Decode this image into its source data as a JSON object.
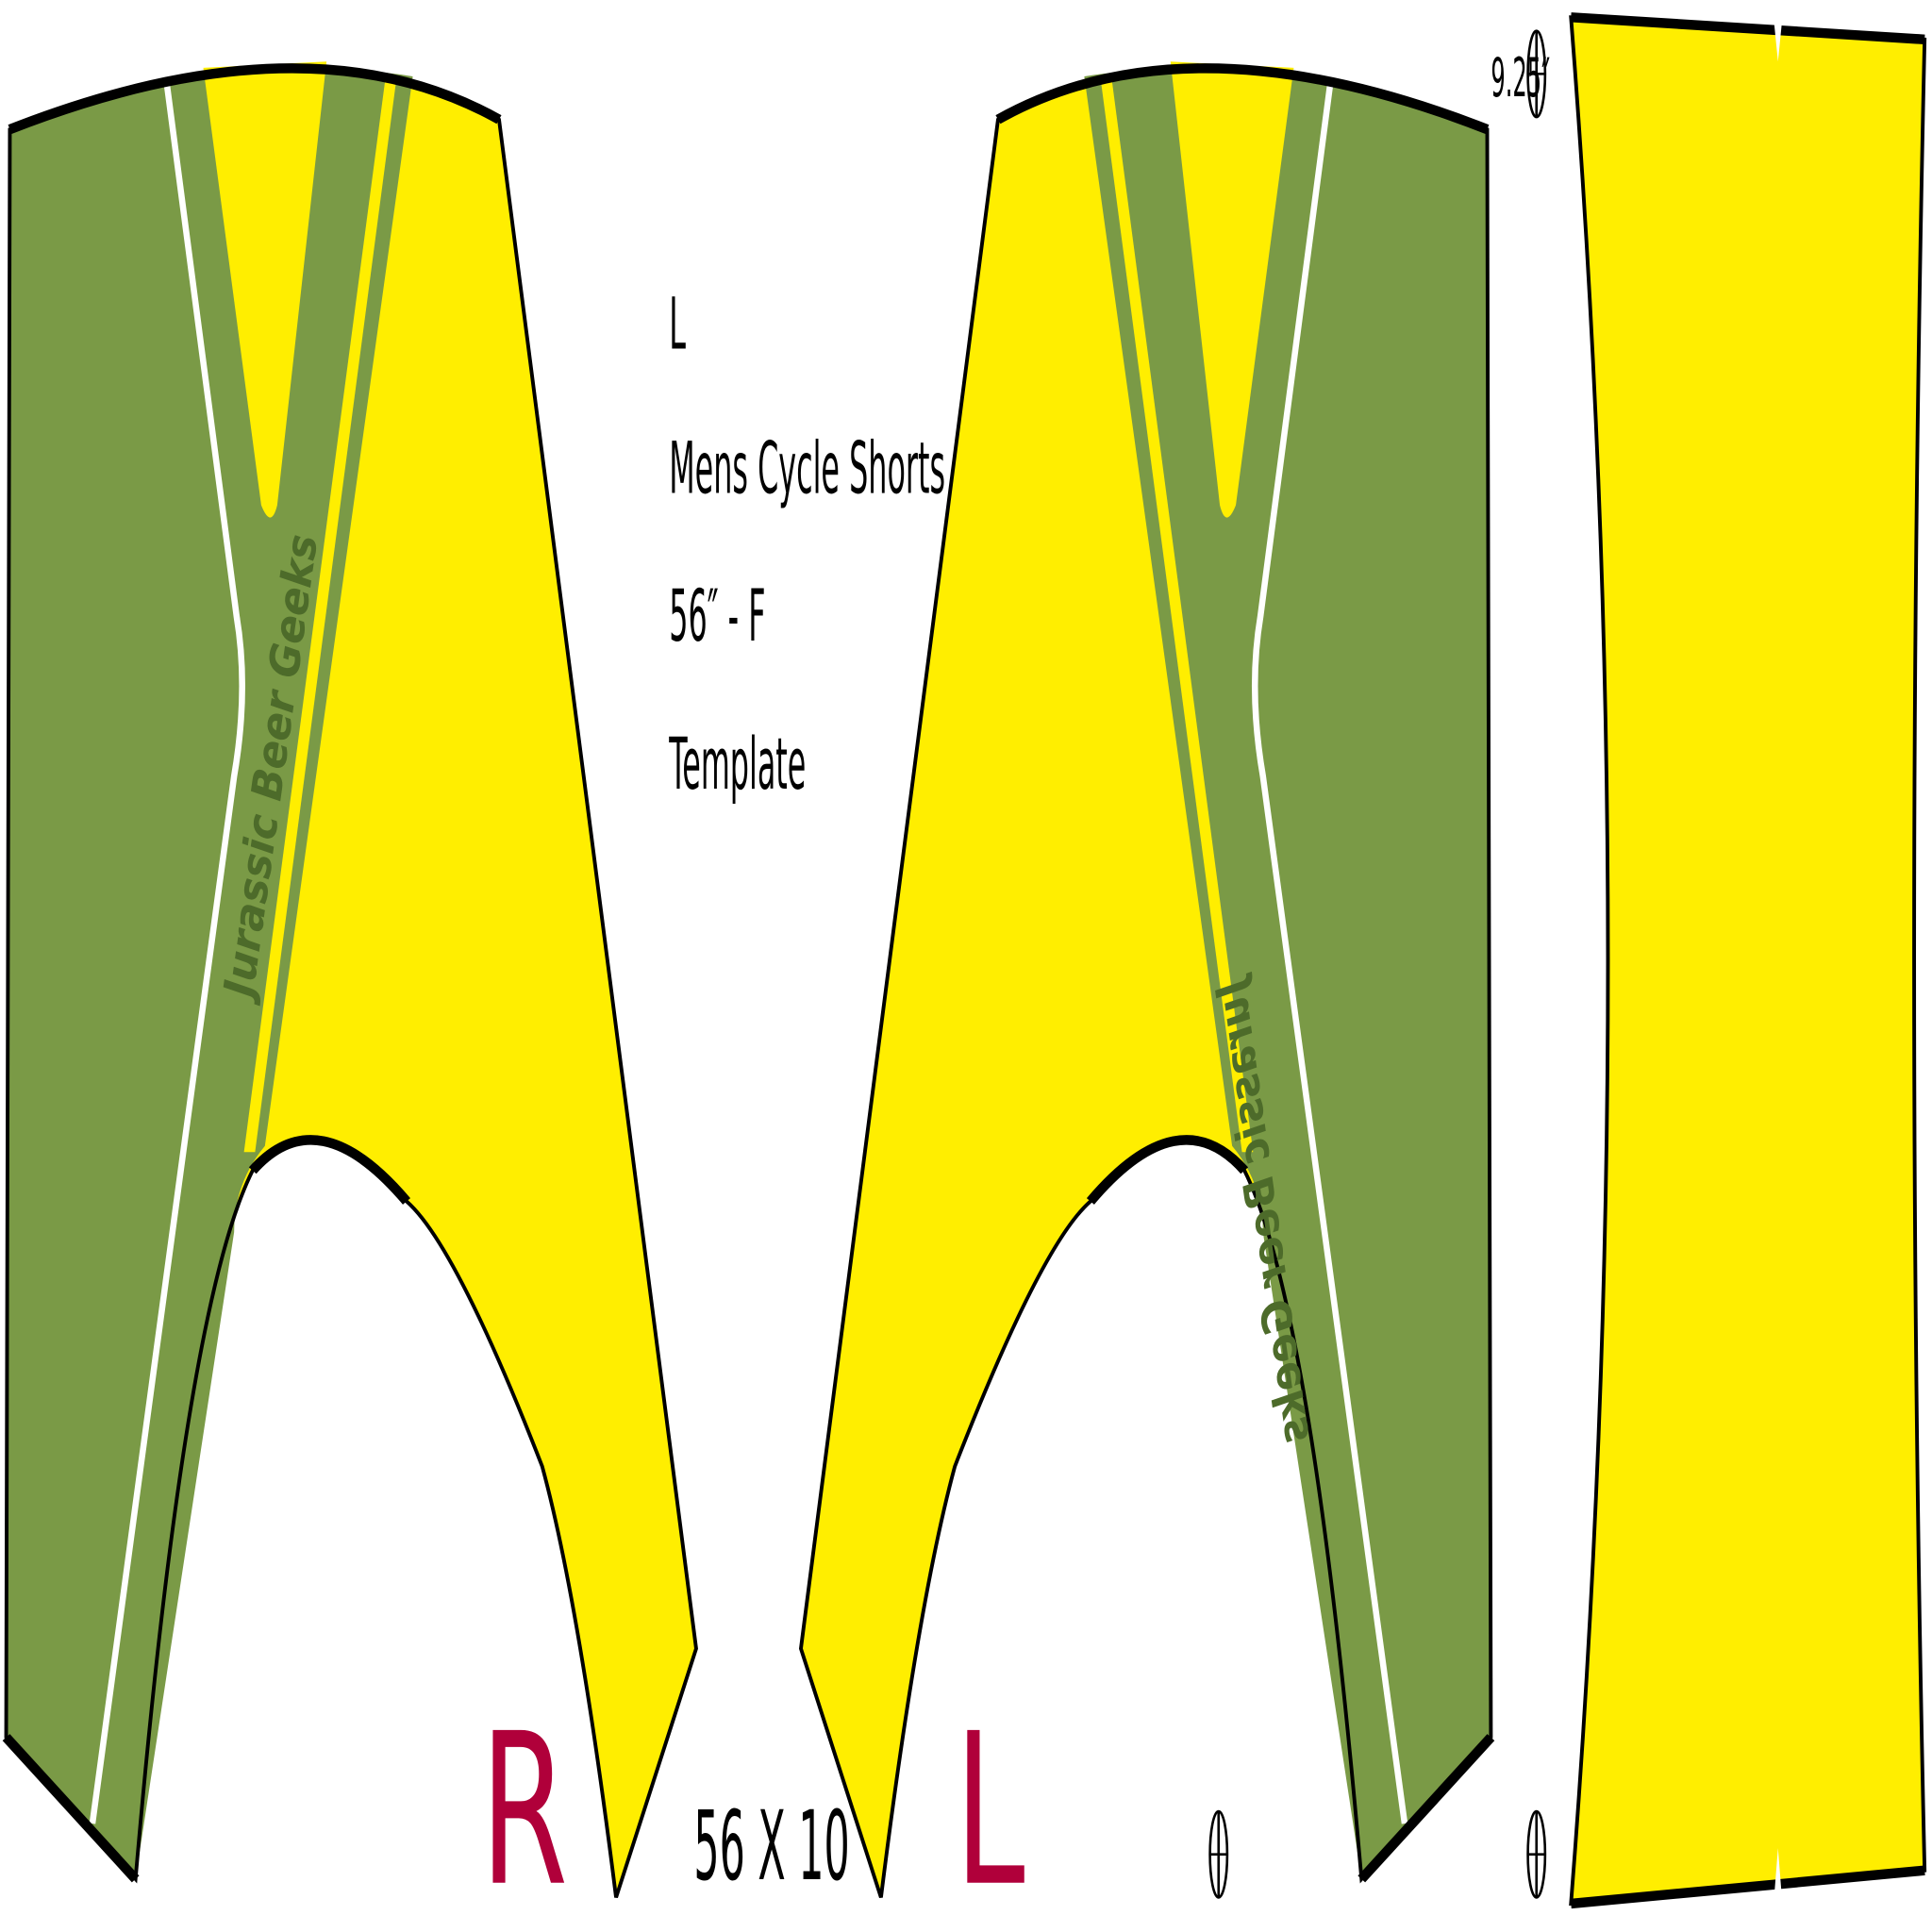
{
  "labels": {
    "size": "L",
    "product": "Mens Cycle Shorts",
    "spec": "56″ - F",
    "kind": "Template",
    "dimensions": "56 X 10",
    "waist_height": "9.25″"
  },
  "panels": [
    {
      "side": "R"
    },
    {
      "side": "L"
    }
  ],
  "stripe_text": "Jurassic Beer Geeks"
}
